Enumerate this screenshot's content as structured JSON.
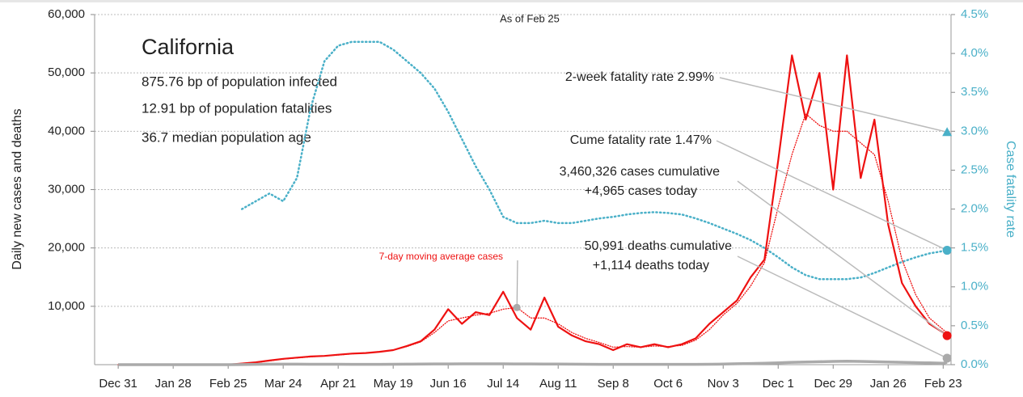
{
  "chart_data": {
    "type": "line",
    "title": "California",
    "subtitle": "As of Feb 25",
    "info": [
      "875.76 bp of population infected",
      "12.91 bp of population fatalities",
      "36.7 median population age"
    ],
    "ylabel": "Daily new cases and deaths",
    "y2label": "Case fatality rate",
    "x": [
      0,
      7,
      14,
      21,
      28,
      35,
      42,
      49,
      56,
      63,
      70,
      77,
      84,
      91,
      98,
      105,
      112,
      119,
      126,
      133,
      140,
      147,
      154,
      161,
      168,
      175,
      182,
      189,
      196,
      203,
      210,
      217,
      224,
      231,
      238,
      245,
      252,
      259,
      266,
      273,
      280,
      287,
      294,
      301,
      308,
      315,
      322,
      329,
      336,
      343,
      350,
      357,
      364,
      371,
      378,
      385,
      392,
      399,
      406,
      413,
      420,
      422
    ],
    "xlim": [
      -12,
      424
    ],
    "xticks": [
      {
        "value": 0,
        "label": "Dec 31"
      },
      {
        "value": 28,
        "label": "Jan 28"
      },
      {
        "value": 56,
        "label": "Feb 25"
      },
      {
        "value": 84,
        "label": "Mar 24"
      },
      {
        "value": 112,
        "label": "Apr 21"
      },
      {
        "value": 140,
        "label": "May 19"
      },
      {
        "value": 168,
        "label": "Jun 16"
      },
      {
        "value": 196,
        "label": "Jul 14"
      },
      {
        "value": 224,
        "label": "Aug 11"
      },
      {
        "value": 252,
        "label": "Sep 8"
      },
      {
        "value": 280,
        "label": "Oct 6"
      },
      {
        "value": 308,
        "label": "Nov 3"
      },
      {
        "value": 336,
        "label": "Dec 1"
      },
      {
        "value": 364,
        "label": "Dec 29"
      },
      {
        "value": 392,
        "label": "Jan 26"
      },
      {
        "value": 420,
        "label": "Feb 23"
      }
    ],
    "ylim": [
      0,
      60000
    ],
    "yticks": [
      {
        "value": 10000,
        "label": "10,000"
      },
      {
        "value": 20000,
        "label": "20,000"
      },
      {
        "value": 30000,
        "label": "30,000"
      },
      {
        "value": 40000,
        "label": "40,000"
      },
      {
        "value": 50000,
        "label": "50,000"
      },
      {
        "value": 60000,
        "label": "60,000"
      }
    ],
    "y2lim": [
      0,
      4.5
    ],
    "y2ticks": [
      {
        "value": 0,
        "label": "0.0%"
      },
      {
        "value": 0.5,
        "label": "0.5%"
      },
      {
        "value": 1,
        "label": "1.0%"
      },
      {
        "value": 1.5,
        "label": "1.5%"
      },
      {
        "value": 2,
        "label": "2.0%"
      },
      {
        "value": 2.5,
        "label": "2.5%"
      },
      {
        "value": 3,
        "label": "3.0%"
      },
      {
        "value": 3.5,
        "label": "3.5%"
      },
      {
        "value": 4,
        "label": "4.0%"
      },
      {
        "value": 4.5,
        "label": "4.5%"
      }
    ],
    "grid": true,
    "series": [
      {
        "color": "#ee1111",
        "style": "solid",
        "values": [
          0,
          0,
          0,
          0,
          0,
          0,
          0,
          0,
          0,
          200,
          400,
          700,
          1000,
          1200,
          1400,
          1500,
          1700,
          1900,
          2000,
          2200,
          2500,
          3200,
          4000,
          6000,
          9500,
          7000,
          9000,
          8500,
          12500,
          8000,
          6000,
          11500,
          6500,
          5000,
          4000,
          3500,
          2500,
          3500,
          3000,
          3500,
          3000,
          3500,
          4500,
          7000,
          9000,
          11000,
          15000,
          18000,
          35000,
          53000,
          42000,
          50000,
          30000,
          53000,
          32000,
          42000,
          24000,
          14000,
          10000,
          7000,
          5500,
          4965
        ]
      },
      {
        "name": "7-day moving average cases",
        "color": "#ee1111",
        "style": "dotted",
        "values": [
          0,
          0,
          0,
          0,
          0,
          0,
          0,
          0,
          0,
          150,
          350,
          650,
          950,
          1150,
          1350,
          1500,
          1650,
          1850,
          2000,
          2200,
          2500,
          3100,
          3900,
          5500,
          7500,
          8000,
          8500,
          8800,
          9500,
          9800,
          8000,
          8000,
          7000,
          5500,
          4500,
          3800,
          3000,
          3100,
          3000,
          3200,
          3100,
          3300,
          4200,
          6000,
          8500,
          10500,
          13500,
          17500,
          27000,
          36000,
          43000,
          41000,
          40000,
          40000,
          38000,
          36000,
          28000,
          18000,
          12000,
          8000,
          6000,
          5500
        ]
      },
      {
        "color": "#aaaaaa",
        "style": "thick",
        "values": [
          0,
          0,
          0,
          0,
          0,
          0,
          0,
          0,
          0,
          10,
          50,
          80,
          90,
          80,
          70,
          70,
          70,
          60,
          60,
          60,
          70,
          90,
          110,
          120,
          130,
          140,
          140,
          140,
          140,
          130,
          120,
          110,
          100,
          80,
          70,
          60,
          60,
          50,
          50,
          50,
          50,
          50,
          60,
          70,
          100,
          150,
          200,
          250,
          300,
          400,
          450,
          500,
          550,
          600,
          550,
          500,
          450,
          400,
          350,
          300,
          250,
          400
        ]
      },
      {
        "color": "#4ab0c8",
        "style": "dotted",
        "axis": "y2",
        "values": [
          null,
          null,
          null,
          null,
          null,
          null,
          null,
          null,
          null,
          2.0,
          2.1,
          2.2,
          2.1,
          2.4,
          3.3,
          3.9,
          4.1,
          4.15,
          4.15,
          4.15,
          4.05,
          3.9,
          3.75,
          3.55,
          3.25,
          2.9,
          2.55,
          2.25,
          1.9,
          1.82,
          1.82,
          1.85,
          1.82,
          1.82,
          1.85,
          1.88,
          1.9,
          1.93,
          1.95,
          1.96,
          1.95,
          1.93,
          1.88,
          1.82,
          1.75,
          1.68,
          1.6,
          1.5,
          1.38,
          1.25,
          1.15,
          1.1,
          1.1,
          1.1,
          1.12,
          1.18,
          1.25,
          1.32,
          1.38,
          1.43,
          1.46,
          1.47
        ]
      }
    ],
    "annotations": [
      {
        "lines": [
          "2-week fatality rate 2.99%"
        ],
        "value": 2.99,
        "axis": "y2",
        "color": "#4ab0c8",
        "shape": "triangle"
      },
      {
        "lines": [
          "Cume fatality rate 1.47%"
        ],
        "value": 1.47,
        "axis": "y2",
        "color": "#4ab0c8",
        "shape": "circle"
      },
      {
        "lines": [
          "3,460,326 cases cumulative",
          "+4,965 cases today"
        ],
        "value": 4965,
        "color": "#ee1111",
        "shape": "circle"
      },
      {
        "lines": [
          "50,991 deaths cumulative",
          "+1,114 deaths today"
        ],
        "value": 1114,
        "color": "#aaaaaa",
        "shape": "circle"
      }
    ]
  }
}
